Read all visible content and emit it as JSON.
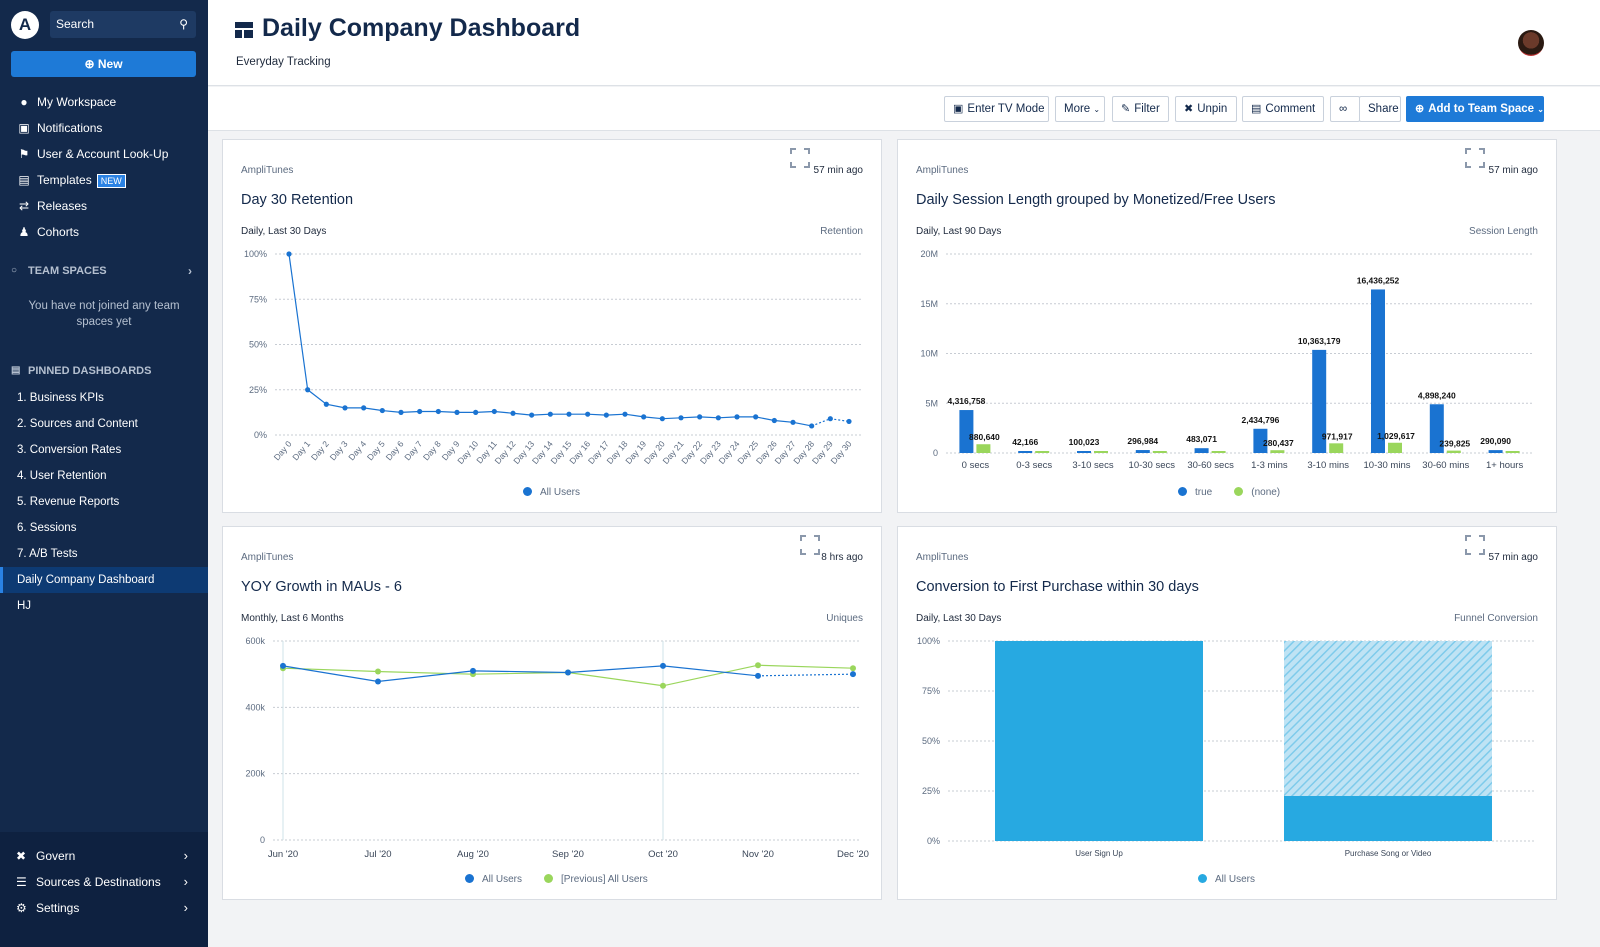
{
  "sidebar": {
    "logo": "A",
    "search_placeholder": "Search",
    "new_label": "New",
    "nav": [
      {
        "label": "My Workspace",
        "icon": "user-icon"
      },
      {
        "label": "Notifications",
        "icon": "inbox-icon"
      },
      {
        "label": "User & Account Look-Up",
        "icon": "user-lookup-icon"
      },
      {
        "label": "Templates",
        "icon": "templates-icon",
        "badge": "NEW"
      },
      {
        "label": "Releases",
        "icon": "releases-icon"
      },
      {
        "label": "Cohorts",
        "icon": "cohorts-icon"
      }
    ],
    "team_spaces_heading": "TEAM SPACES",
    "team_spaces_empty": "You have not joined any team spaces yet",
    "pinned_heading": "PINNED DASHBOARDS",
    "pinned": [
      "1. Business KPIs",
      "2. Sources and Content",
      "3. Conversion Rates",
      "4. User Retention",
      "5. Revenue Reports",
      "6. Sessions",
      "7. A/B Tests",
      "Daily Company Dashboard",
      "HJ"
    ],
    "active_pinned": "Daily Company Dashboard",
    "bottom": [
      {
        "label": "Govern",
        "icon": "govern-icon"
      },
      {
        "label": "Sources & Destinations",
        "icon": "sources-icon"
      },
      {
        "label": "Settings",
        "icon": "gear-icon"
      }
    ]
  },
  "header": {
    "title": "Daily Company Dashboard",
    "subtitle": "Everyday Tracking"
  },
  "toolbar": {
    "tv_mode": "Enter TV Mode",
    "more": "More",
    "filter": "Filter",
    "unpin": "Unpin",
    "comment": "Comment",
    "share": "Share",
    "add_team": "Add to Team Space"
  },
  "colors": {
    "primary": "#1e7ad7",
    "sidebar": "#13294b",
    "series_blue": "#1a73d1",
    "series_green": "#9ad65c",
    "bar_cyan": "#27a9e1"
  },
  "cards": [
    {
      "source": "AmpliTunes",
      "ago": "57 min ago",
      "title": "Day 30 Retention",
      "range": "Daily, Last 30 Days",
      "metric": "Retention",
      "legend": [
        "All Users"
      ]
    },
    {
      "source": "AmpliTunes",
      "ago": "57 min ago",
      "title": "Daily Session Length grouped by Monetized/Free Users",
      "range": "Daily, Last 90 Days",
      "metric": "Session Length",
      "legend": [
        "true",
        "(none)"
      ]
    },
    {
      "source": "AmpliTunes",
      "ago": "8 hrs ago",
      "title": "YOY Growth in MAUs - 6",
      "range": "Monthly, Last 6 Months",
      "metric": "Uniques",
      "legend": [
        "All Users",
        "[Previous] All Users"
      ]
    },
    {
      "source": "AmpliTunes",
      "ago": "57 min ago",
      "title": "Conversion to First Purchase within 30 days",
      "range": "Daily, Last 30 Days",
      "metric": "Funnel Conversion",
      "legend": [
        "All Users"
      ]
    }
  ],
  "chart_data": [
    {
      "type": "line",
      "title": "Day 30 Retention",
      "categories": [
        "Day 0",
        "Day 1",
        "Day 2",
        "Day 3",
        "Day 4",
        "Day 5",
        "Day 6",
        "Day 7",
        "Day 8",
        "Day 9",
        "Day 10",
        "Day 11",
        "Day 12",
        "Day 13",
        "Day 14",
        "Day 15",
        "Day 16",
        "Day 17",
        "Day 18",
        "Day 19",
        "Day 20",
        "Day 21",
        "Day 22",
        "Day 23",
        "Day 24",
        "Day 25",
        "Day 26",
        "Day 27",
        "Day 28",
        "Day 29",
        "Day 30"
      ],
      "yticks": [
        "100%",
        "75%",
        "50%",
        "25%",
        "0%"
      ],
      "ylim": [
        0,
        100
      ],
      "series": [
        {
          "name": "All Users",
          "values": [
            100,
            25,
            17,
            15,
            15,
            13.5,
            12.5,
            13,
            13,
            12.5,
            12.5,
            13,
            12,
            11,
            11.5,
            11.5,
            11.5,
            11,
            11.5,
            10,
            9,
            9.5,
            10,
            9.5,
            10,
            10,
            8,
            7,
            5,
            9,
            7.5
          ]
        }
      ]
    },
    {
      "type": "bar",
      "title": "Daily Session Length grouped by Monetized/Free Users",
      "categories": [
        "0 secs",
        "0-3 secs",
        "3-10 secs",
        "10-30 secs",
        "30-60 secs",
        "1-3 mins",
        "3-10 mins",
        "10-30 mins",
        "30-60 mins",
        "1+ hours"
      ],
      "yticks": [
        "20M",
        "15M",
        "10M",
        "5M",
        "0"
      ],
      "ylim": [
        0,
        20000000
      ],
      "series": [
        {
          "name": "true",
          "values": [
            4316758,
            42166,
            100023,
            296984,
            483071,
            2434796,
            10363179,
            16436252,
            4898240,
            290090
          ],
          "labels": [
            "4,316,758",
            "42,166",
            "100,023",
            "296,984",
            "483,071",
            "2,434,796",
            "10,363,179",
            "16,436,252",
            "4,898,240",
            "290,090"
          ]
        },
        {
          "name": "(none)",
          "values": [
            880640,
            0,
            0,
            0,
            0,
            280437,
            971917,
            1029617,
            239825,
            0
          ],
          "labels": [
            "880,640",
            "",
            "",
            "",
            "",
            "280,437",
            "971,917",
            "1,029,617",
            "239,825",
            ""
          ]
        }
      ]
    },
    {
      "type": "line",
      "title": "YOY Growth in MAUs - 6",
      "categories": [
        "Jun '20",
        "Jul '20",
        "Aug '20",
        "Sep '20",
        "Oct '20",
        "Nov '20",
        "Dec '20"
      ],
      "yticks": [
        "600k",
        "400k",
        "200k",
        "0"
      ],
      "ylim": [
        0,
        600000
      ],
      "series": [
        {
          "name": "All Users",
          "values": [
            525000,
            478000,
            510000,
            505000,
            525000,
            495000,
            500000
          ]
        },
        {
          "name": "[Previous] All Users",
          "values": [
            518000,
            508000,
            500000,
            505000,
            465000,
            527000,
            518000
          ]
        }
      ]
    },
    {
      "type": "bar",
      "title": "Conversion to First Purchase within 30 days",
      "categories": [
        "User Sign Up",
        "Purchase Song or Video"
      ],
      "yticks": [
        "100%",
        "75%",
        "50%",
        "25%",
        "0%"
      ],
      "ylim": [
        0,
        100
      ],
      "series": [
        {
          "name": "All Users",
          "values": [
            100,
            22.5
          ]
        }
      ]
    }
  ]
}
